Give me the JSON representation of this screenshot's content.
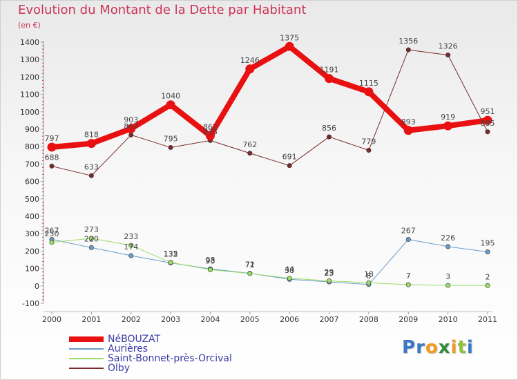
{
  "title": "Evolution du Montant de la Dette par Habitant",
  "subtitle": "(en €)",
  "logo": {
    "letters": [
      {
        "ch": "P",
        "color": "#3b78c8"
      },
      {
        "ch": "r",
        "color": "#3b78c8"
      },
      {
        "ch": "o",
        "color": "#f29a1f"
      },
      {
        "ch": "x",
        "color": "#2e8b3a"
      },
      {
        "ch": "i",
        "color": "#f29a1f"
      },
      {
        "ch": "t",
        "color": "#8fc23a"
      },
      {
        "ch": "i",
        "color": "#3b78c8"
      }
    ]
  },
  "chart_data": {
    "type": "line",
    "title": "Evolution du Montant de la Dette par Habitant",
    "subtitle": "(en €)",
    "x": [
      "2000",
      "2001",
      "2002",
      "2003",
      "2004",
      "2005",
      "2006",
      "2007",
      "2008",
      "2009",
      "2010",
      "2011"
    ],
    "ylim": [
      -100,
      1400
    ],
    "yticks": [
      -100,
      0,
      100,
      200,
      300,
      400,
      500,
      600,
      700,
      800,
      900,
      1000,
      1100,
      1200,
      1300,
      1400
    ],
    "grid": false,
    "legend_position": "bottom-left",
    "series": [
      {
        "name": "NéBOUZAT",
        "color": "#e81010",
        "width": 8,
        "values": [
          797,
          818,
          903,
          1040,
          862,
          1246,
          1375,
          1191,
          1115,
          893,
          919,
          951
        ],
        "labels": [
          "797",
          "818",
          "903",
          "1040",
          "862",
          "1246",
          "1375",
          "1191",
          "1115",
          "893",
          "919",
          "951"
        ]
      },
      {
        "name": "Aurières",
        "color": "#6a9bc8",
        "width": 1,
        "values": [
          267,
          220,
          174,
          132,
          98,
          72,
          38,
          23,
          8,
          267,
          226,
          195
        ],
        "labels": [
          "267",
          "220",
          "174",
          "132",
          "98",
          "72",
          "38",
          "23",
          "8",
          "267",
          "226",
          "195"
        ]
      },
      {
        "name": "Saint-Bonnet-près-Orcival",
        "color": "#99dd66",
        "width": 1,
        "values": [
          250,
          273,
          233,
          135,
          93,
          71,
          44,
          29,
          18,
          7,
          3,
          2
        ],
        "labels": [
          "250",
          "273",
          "233",
          "135",
          "93",
          "71",
          "44",
          "29",
          "18",
          "7",
          "3",
          "2"
        ]
      },
      {
        "name": "Olby",
        "color": "#7a2a2a",
        "width": 1,
        "values": [
          688,
          633,
          867,
          795,
          835,
          762,
          691,
          856,
          779,
          1356,
          1326,
          885
        ],
        "labels": [
          "688",
          "633",
          "867",
          "795",
          "835",
          "762",
          "691",
          "856",
          "779",
          "1356",
          "1326",
          "885"
        ]
      }
    ]
  }
}
